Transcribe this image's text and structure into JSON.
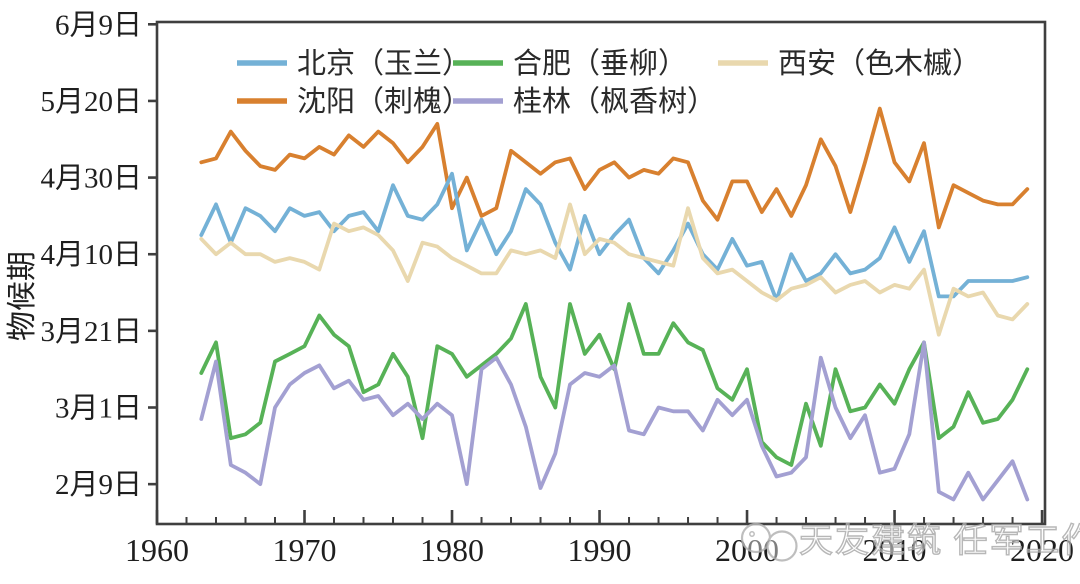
{
  "figure": {
    "background": "#ffffff",
    "frame_color": "#3f3f3f",
    "text_color": "#1f1f1f",
    "watermark_color": "#ababab"
  },
  "y_axis": {
    "title": "物候期",
    "unit": "date (month/day)",
    "ticks": [
      {
        "label": "6月9日",
        "day": 160
      },
      {
        "label": "5月20日",
        "day": 140
      },
      {
        "label": "4月30日",
        "day": 120
      },
      {
        "label": "4月10日",
        "day": 100
      },
      {
        "label": "3月21日",
        "day": 80
      },
      {
        "label": "3月1日",
        "day": 60
      },
      {
        "label": "2月9日",
        "day": 40
      }
    ]
  },
  "x_axis": {
    "major_tick_labels": [
      "1960",
      "1970",
      "1980",
      "1990",
      "2000",
      "2010",
      "2020"
    ],
    "major_tick_years": [
      1960,
      1970,
      1980,
      1990,
      2000,
      2010,
      2020
    ],
    "minor_tick_step_years": 2
  },
  "legend": {
    "items": [
      {
        "label": "北京（玉兰）",
        "color": "#74b1d6",
        "row": 1
      },
      {
        "label": "合肥（垂柳）",
        "color": "#57b257",
        "row": 1
      },
      {
        "label": "西安（色木槭）",
        "color": "#e9d8ae",
        "row": 1
      },
      {
        "label": "沈阳（刺槐）",
        "color": "#d8802f",
        "row": 2
      },
      {
        "label": "桂林（枫香树）",
        "color": "#a3a0d2",
        "row": 2
      }
    ]
  },
  "watermark": {
    "text": "天友建筑 任军工作室",
    "logo": "two-overlapping-circles"
  },
  "chart_data": {
    "type": "line",
    "title": "",
    "xlabel": "",
    "ylabel": "物候期",
    "y_unit": "day-of-year (1 = Jan 1)",
    "xlim": [
      1960,
      2020
    ],
    "ylim_days": [
      30,
      160
    ],
    "grid": false,
    "legend_position": "top-inside",
    "years": [
      1963,
      1964,
      1965,
      1966,
      1967,
      1968,
      1969,
      1970,
      1971,
      1972,
      1973,
      1974,
      1975,
      1976,
      1977,
      1978,
      1979,
      1980,
      1981,
      1982,
      1983,
      1984,
      1985,
      1986,
      1987,
      1988,
      1989,
      1990,
      1991,
      1992,
      1993,
      1994,
      1995,
      1996,
      1997,
      1998,
      1999,
      2000,
      2001,
      2002,
      2003,
      2004,
      2005,
      2006,
      2007,
      2008,
      2009,
      2010,
      2011,
      2012,
      2013,
      2014,
      2015,
      2016,
      2017,
      2018,
      2019
    ],
    "series": [
      {
        "name": "沈阳（刺槐）",
        "city": "沈阳",
        "plant": "刺槐",
        "color": "#d8802f",
        "values": [
          124,
          125,
          132,
          127,
          123,
          122,
          126,
          125,
          128,
          126,
          131,
          128,
          132,
          129,
          124,
          128,
          134,
          112,
          120,
          110,
          112,
          127,
          124,
          121,
          124,
          125,
          117,
          122,
          124,
          120,
          122,
          121,
          125,
          124,
          114,
          109,
          119,
          119,
          111,
          117,
          110,
          118,
          130,
          123,
          111,
          124,
          138,
          124,
          119,
          129,
          107,
          118,
          116,
          114,
          113,
          113,
          117
        ]
      },
      {
        "name": "北京（玉兰）",
        "city": "北京",
        "plant": "玉兰",
        "color": "#74b1d6",
        "values": [
          105,
          113,
          103,
          112,
          110,
          106,
          112,
          110,
          111,
          106,
          110,
          111,
          106,
          118,
          110,
          109,
          113,
          121,
          101,
          109,
          100,
          106,
          117,
          113,
          103,
          96,
          110,
          100,
          105,
          109,
          99,
          95,
          101,
          108,
          100,
          96,
          104,
          97,
          98,
          88,
          100,
          93,
          95,
          100,
          95,
          96,
          99,
          107,
          98,
          106,
          89,
          89,
          93,
          93,
          93,
          93,
          94
        ]
      },
      {
        "name": "西安（色木槭）",
        "city": "西安",
        "plant": "色木槭",
        "color": "#e9d8ae",
        "values": [
          104,
          100,
          103,
          100,
          100,
          98,
          99,
          98,
          96,
          108,
          106,
          107,
          105,
          101,
          93,
          103,
          102,
          99,
          97,
          95,
          95,
          101,
          100,
          101,
          99,
          113,
          100,
          104,
          103,
          100,
          99,
          98,
          97,
          112,
          99,
          95,
          96,
          93,
          90,
          88,
          91,
          92,
          94,
          90,
          92,
          93,
          90,
          92,
          91,
          96,
          79,
          91,
          89,
          90,
          84,
          83,
          87
        ]
      },
      {
        "name": "合肥（垂柳）",
        "city": "合肥",
        "plant": "垂柳",
        "color": "#57b257",
        "values": [
          69,
          77,
          52,
          53,
          56,
          72,
          74,
          76,
          84,
          79,
          76,
          64,
          66,
          74,
          68,
          52,
          76,
          74,
          68,
          71,
          74,
          78,
          87,
          68,
          60,
          87,
          74,
          79,
          70,
          87,
          74,
          74,
          82,
          77,
          75,
          65,
          62,
          70,
          51,
          47,
          45,
          61,
          50,
          70,
          59,
          60,
          66,
          61,
          70,
          77,
          52,
          55,
          64,
          56,
          57,
          62,
          70
        ]
      },
      {
        "name": "桂林（枫香树）",
        "city": "桂林",
        "plant": "枫香树",
        "color": "#a3a0d2",
        "values": [
          57,
          72,
          45,
          43,
          40,
          60,
          66,
          69,
          71,
          65,
          67,
          62,
          63,
          58,
          61,
          57,
          61,
          58,
          40,
          70,
          73,
          66,
          55,
          39,
          48,
          66,
          69,
          68,
          71,
          54,
          53,
          60,
          59,
          59,
          54,
          62,
          58,
          62,
          50,
          42,
          43,
          47,
          73,
          60,
          52,
          58,
          43,
          44,
          53,
          77,
          38,
          36,
          43,
          36,
          41,
          46,
          36
        ]
      }
    ]
  }
}
